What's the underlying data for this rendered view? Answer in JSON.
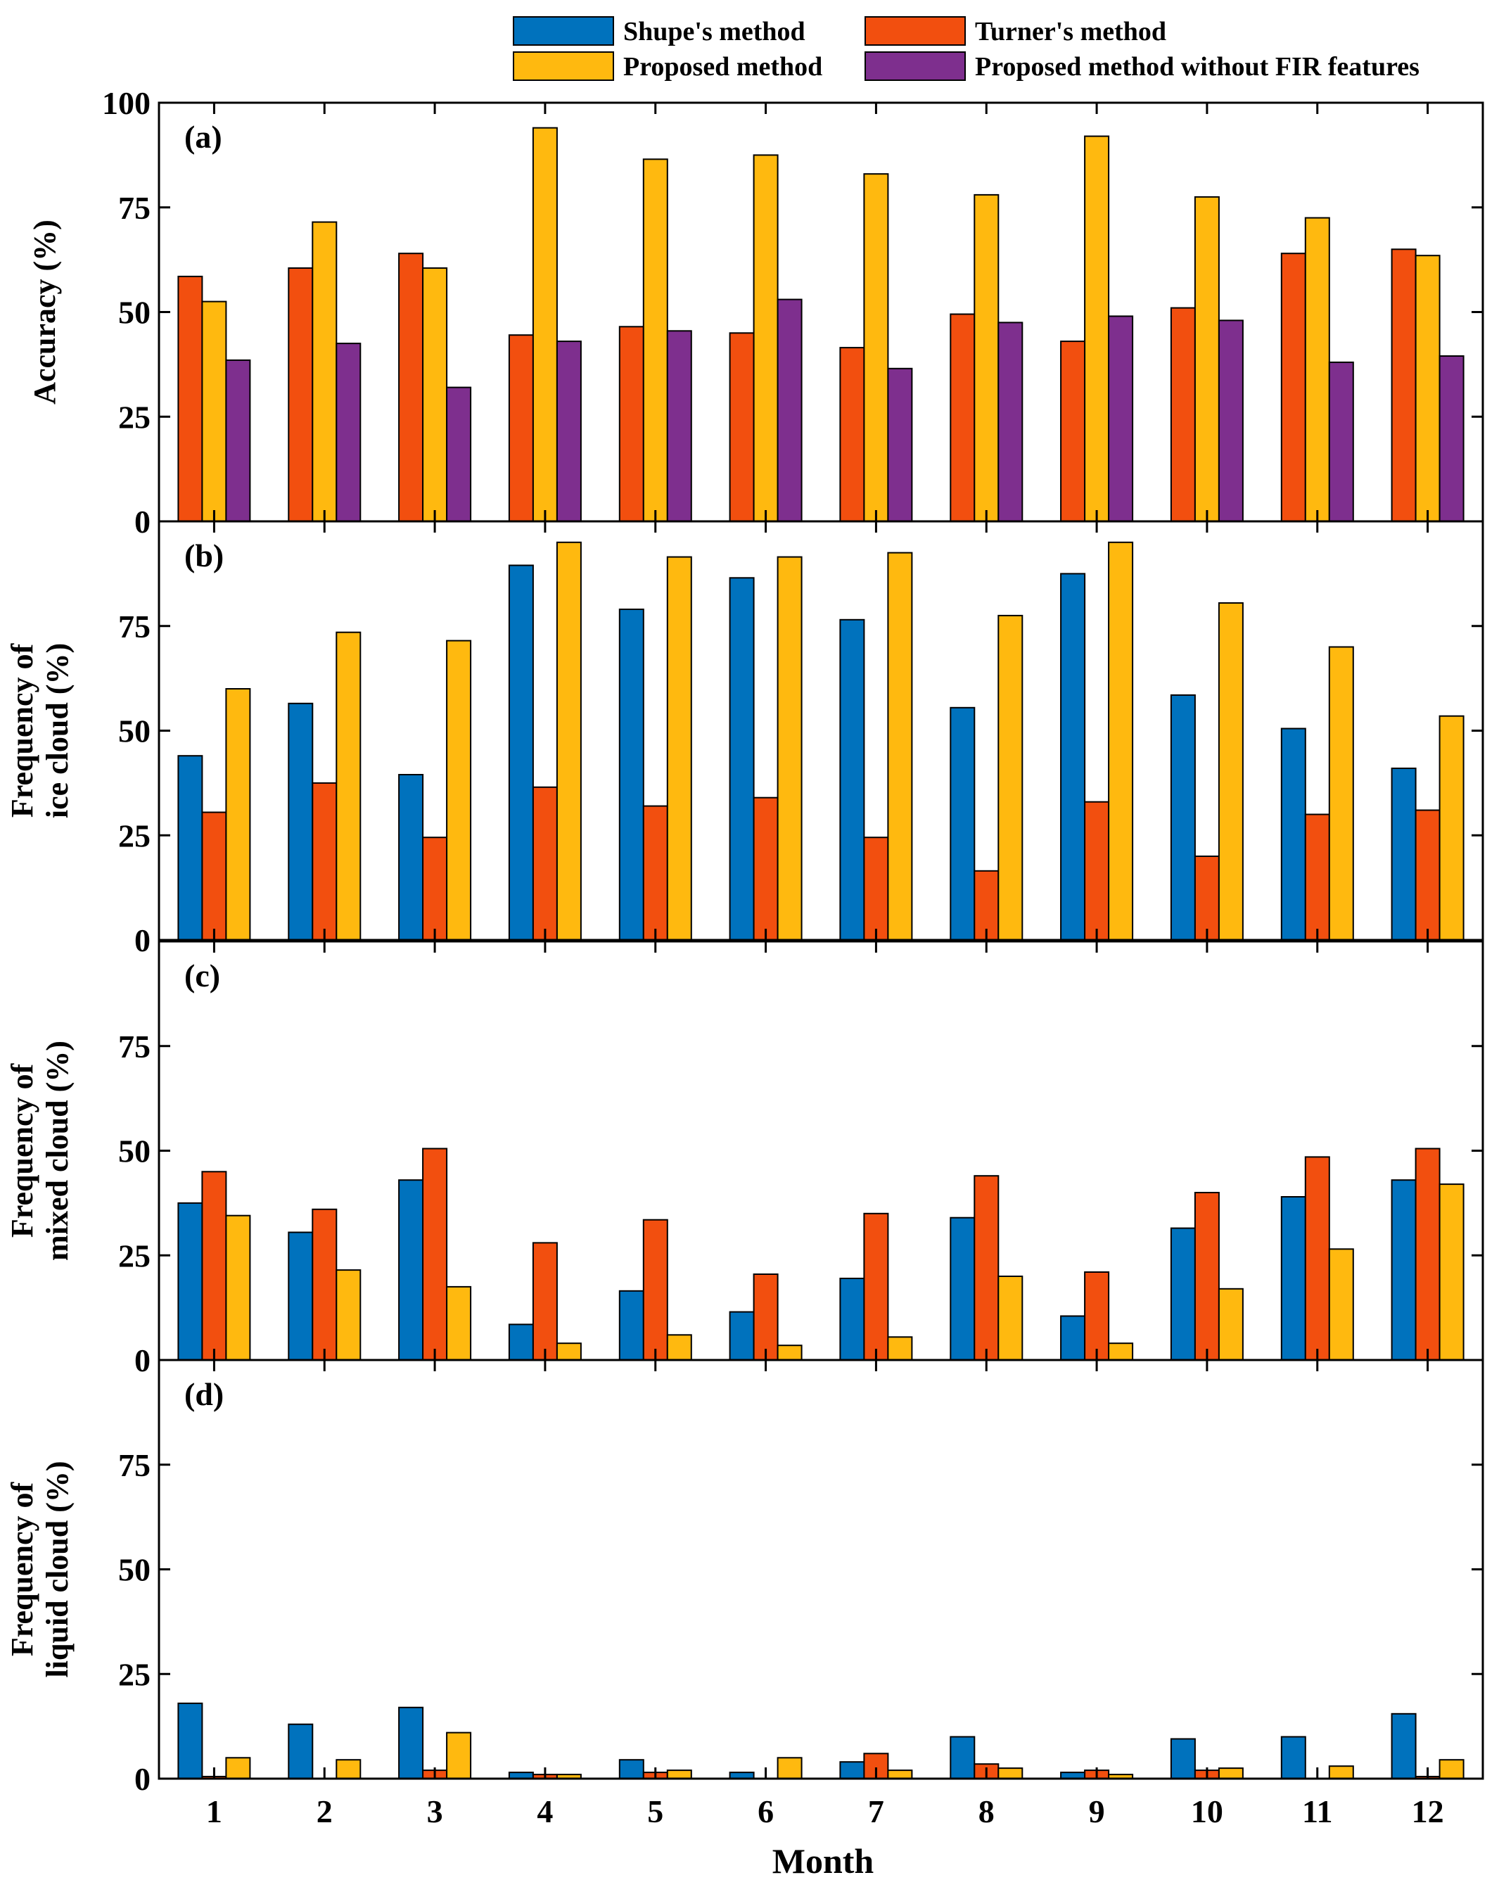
{
  "chart_data": {
    "type": "bar",
    "xlabel": "Month",
    "categories": [
      "1",
      "2",
      "3",
      "4",
      "5",
      "6",
      "7",
      "8",
      "9",
      "10",
      "11",
      "12"
    ],
    "legend": {
      "placement": "top",
      "entries": [
        {
          "name": "Shupe's method",
          "color": "#0072BD"
        },
        {
          "name": "Turner's method",
          "color": "#F24F0F"
        },
        {
          "name": "Proposed method",
          "color": "#FFB90F"
        },
        {
          "name": "Proposed method without FIR features",
          "color": "#7E2F8E"
        }
      ]
    },
    "panels": [
      {
        "label": "(a)",
        "ylabel": [
          "Accuracy (%)"
        ],
        "ylim": [
          0,
          100
        ],
        "yticks": [
          0,
          25,
          50,
          75,
          100
        ],
        "series": [
          {
            "name": "Turner's method",
            "color": "#F24F0F",
            "values": [
              58.5,
              60.5,
              64,
              44.5,
              46.5,
              45,
              41.5,
              49.5,
              43,
              51,
              64,
              65
            ]
          },
          {
            "name": "Proposed method",
            "color": "#FFB90F",
            "values": [
              52.5,
              71.5,
              60.5,
              94,
              86.5,
              87.5,
              83,
              78,
              92,
              77.5,
              72.5,
              63.5
            ]
          },
          {
            "name": "Proposed method without FIR features",
            "color": "#7E2F8E",
            "values": [
              38.5,
              42.5,
              32,
              43,
              45.5,
              53,
              36.5,
              47.5,
              49,
              48,
              38,
              39.5
            ]
          }
        ]
      },
      {
        "label": "(b)",
        "ylabel": [
          "Frequency of",
          "ice cloud (%)"
        ],
        "ylim": [
          0,
          100
        ],
        "yticks": [
          0,
          25,
          50,
          75
        ],
        "series": [
          {
            "name": "Shupe's method",
            "color": "#0072BD",
            "values": [
              44,
              56.5,
              39.5,
              89.5,
              79,
              86.5,
              76.5,
              55.5,
              87.5,
              58.5,
              50.5,
              41
            ]
          },
          {
            "name": "Turner's method",
            "color": "#F24F0F",
            "values": [
              30.5,
              37.5,
              24.5,
              36.5,
              32,
              34,
              24.5,
              16.5,
              33,
              20,
              30,
              31
            ]
          },
          {
            "name": "Proposed method",
            "color": "#FFB90F",
            "values": [
              60,
              73.5,
              71.5,
              95,
              91.5,
              91.5,
              92.5,
              77.5,
              95,
              80.5,
              70,
              53.5
            ]
          }
        ]
      },
      {
        "label": "(c)",
        "ylabel": [
          "Frequency of",
          "mixed cloud (%)"
        ],
        "ylim": [
          0,
          100
        ],
        "yticks": [
          0,
          25,
          50,
          75
        ],
        "series": [
          {
            "name": "Shupe's method",
            "color": "#0072BD",
            "values": [
              37.5,
              30.5,
              43,
              8.5,
              16.5,
              11.5,
              19.5,
              34,
              10.5,
              31.5,
              39,
              43
            ]
          },
          {
            "name": "Turner's method",
            "color": "#F24F0F",
            "values": [
              45,
              36,
              50.5,
              28,
              33.5,
              20.5,
              35,
              44,
              21,
              40,
              48.5,
              50.5
            ]
          },
          {
            "name": "Proposed method",
            "color": "#FFB90F",
            "values": [
              34.5,
              21.5,
              17.5,
              4,
              6,
              3.5,
              5.5,
              20,
              4,
              17,
              26.5,
              42
            ]
          }
        ]
      },
      {
        "label": "(d)",
        "ylabel": [
          "Frequency of",
          "liquid cloud (%)"
        ],
        "ylim": [
          0,
          100
        ],
        "yticks": [
          0,
          25,
          50,
          75
        ],
        "series": [
          {
            "name": "Shupe's method",
            "color": "#0072BD",
            "values": [
              18,
              13,
              17,
              1.5,
              4.5,
              1.5,
              4,
              10,
              1.5,
              9.5,
              10,
              15.5
            ]
          },
          {
            "name": "Turner's method",
            "color": "#F24F0F",
            "values": [
              0.5,
              0,
              2,
              1,
              1.5,
              0,
              6,
              3.5,
              2,
              2,
              0,
              0.5
            ]
          },
          {
            "name": "Proposed method",
            "color": "#FFB90F",
            "values": [
              5,
              4.5,
              11,
              1,
              2,
              5,
              2,
              2.5,
              1,
              2.5,
              3,
              4.5
            ]
          }
        ]
      }
    ]
  }
}
